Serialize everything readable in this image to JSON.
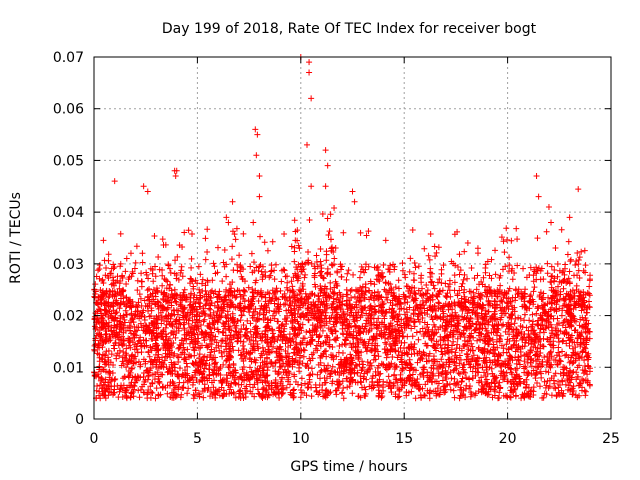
{
  "chart_data": {
    "type": "scatter",
    "title": "Day 199 of 2018, Rate Of TEC Index for receiver bogt",
    "xlabel": "GPS time / hours",
    "ylabel": "ROTI / TECUs",
    "xlim": [
      0,
      25
    ],
    "ylim": [
      0,
      0.07
    ],
    "xticks": [
      0,
      5,
      10,
      15,
      20,
      25
    ],
    "xtick_labels": [
      "0",
      "5",
      "10",
      "15",
      "20",
      "25"
    ],
    "yticks": [
      0,
      0.01,
      0.02,
      0.03,
      0.04,
      0.05,
      0.06,
      0.07
    ],
    "ytick_labels": [
      "0",
      "0.01",
      "0.02",
      "0.03",
      "0.04",
      "0.05",
      "0.06",
      "0.07"
    ],
    "grid": "dotted",
    "marker": "+",
    "colors": {
      "series": "#ff0000",
      "grid": "#a0a0a0",
      "axis": "#000000"
    },
    "data_extent": {
      "x_min": 0,
      "x_max": 24,
      "baseline_low": 0.004,
      "baseline_high": 0.025
    },
    "notable_points": [
      {
        "x": 1.0,
        "y": 0.046
      },
      {
        "x": 2.4,
        "y": 0.045
      },
      {
        "x": 2.6,
        "y": 0.044
      },
      {
        "x": 3.9,
        "y": 0.048
      },
      {
        "x": 4.0,
        "y": 0.048
      },
      {
        "x": 3.95,
        "y": 0.047
      },
      {
        "x": 6.4,
        "y": 0.039
      },
      {
        "x": 6.5,
        "y": 0.038
      },
      {
        "x": 6.7,
        "y": 0.042
      },
      {
        "x": 7.8,
        "y": 0.056
      },
      {
        "x": 7.9,
        "y": 0.055
      },
      {
        "x": 7.85,
        "y": 0.051
      },
      {
        "x": 8.0,
        "y": 0.047
      },
      {
        "x": 8.0,
        "y": 0.043
      },
      {
        "x": 7.7,
        "y": 0.038
      },
      {
        "x": 10.0,
        "y": 0.07
      },
      {
        "x": 10.4,
        "y": 0.069
      },
      {
        "x": 10.4,
        "y": 0.067
      },
      {
        "x": 10.5,
        "y": 0.062
      },
      {
        "x": 10.3,
        "y": 0.053
      },
      {
        "x": 10.5,
        "y": 0.045
      },
      {
        "x": 11.2,
        "y": 0.052
      },
      {
        "x": 11.3,
        "y": 0.049
      },
      {
        "x": 11.2,
        "y": 0.045
      },
      {
        "x": 12.5,
        "y": 0.044
      },
      {
        "x": 12.6,
        "y": 0.042
      },
      {
        "x": 21.4,
        "y": 0.047
      },
      {
        "x": 21.5,
        "y": 0.043
      },
      {
        "x": 22.0,
        "y": 0.041
      },
      {
        "x": 22.1,
        "y": 0.038
      },
      {
        "x": 23.0,
        "y": 0.039
      }
    ]
  }
}
